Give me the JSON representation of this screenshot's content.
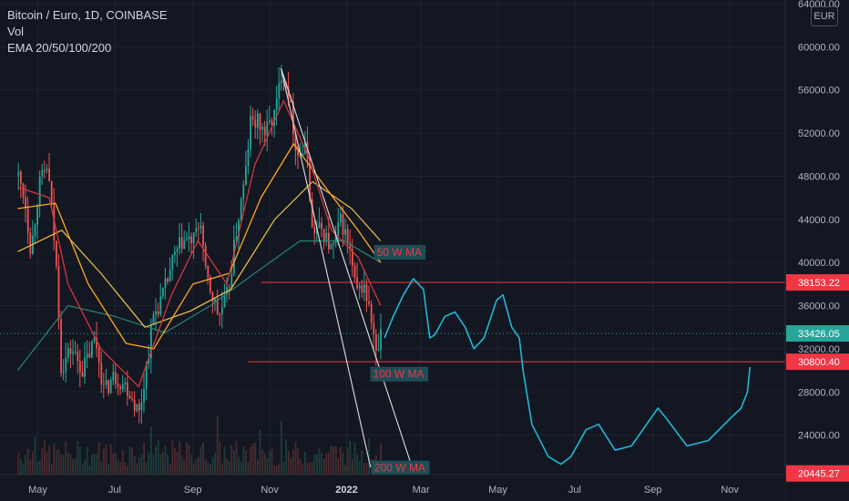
{
  "legend": {
    "title": "Bitcoin / Euro, 1D, COINBASE",
    "vol": "Vol",
    "ema": "EMA 20/50/100/200"
  },
  "currency": "EUR",
  "colors": {
    "background": "#131722",
    "grid": "#1e222d",
    "axis_text": "#b2b5be",
    "up": "#26a69a",
    "down": "#ef5350",
    "ema20": "#d3373c",
    "ema50": "#ffa726",
    "ema100": "#e6b84a",
    "ema200": "#2a7f6f",
    "projection": "#22b7d6",
    "trendline": "#e0e0e0",
    "hline": "#f23645"
  },
  "chart_data": {
    "type": "candlestick",
    "symbol": "Bitcoin / Euro",
    "interval": "1D",
    "exchange": "COINBASE",
    "currency": "EUR",
    "x_ticks": [
      "May",
      "Jul",
      "Sep",
      "Nov",
      "2022",
      "Mar",
      "May",
      "Jul",
      "Sep",
      "Nov"
    ],
    "y_ticks": [
      24000,
      28000,
      32000,
      36000,
      40000,
      44000,
      48000,
      52000,
      56000,
      60000,
      64000
    ],
    "price_range": [
      21000,
      64500
    ],
    "price_labels": [
      {
        "value": "38153.22",
        "color": "#f23645"
      },
      {
        "value": "33426.05",
        "color": "#26a69a"
      },
      {
        "value": "30800.40",
        "color": "#f23645"
      },
      {
        "value": "20445.27",
        "color": "#f23645"
      }
    ],
    "horizontal_lines": [
      38153.22,
      30800.4
    ],
    "current_price": 33426.05,
    "annotations": [
      "50 W MA",
      "100 W MA",
      "200 W MA"
    ],
    "price_path": [
      {
        "d": "2021-04-15",
        "p": 48000
      },
      {
        "d": "2021-04-20",
        "p": 46000
      },
      {
        "d": "2021-04-25",
        "p": 41000
      },
      {
        "d": "2021-05-01",
        "p": 47000
      },
      {
        "d": "2021-05-08",
        "p": 49000
      },
      {
        "d": "2021-05-12",
        "p": 44000
      },
      {
        "d": "2021-05-16",
        "p": 38000
      },
      {
        "d": "2021-05-19",
        "p": 30000
      },
      {
        "d": "2021-05-22",
        "p": 31000
      },
      {
        "d": "2021-05-27",
        "p": 32000
      },
      {
        "d": "2021-06-05",
        "p": 30000
      },
      {
        "d": "2021-06-15",
        "p": 33000
      },
      {
        "d": "2021-06-22",
        "p": 28000
      },
      {
        "d": "2021-06-30",
        "p": 29500
      },
      {
        "d": "2021-07-10",
        "p": 28500
      },
      {
        "d": "2021-07-20",
        "p": 26000
      },
      {
        "d": "2021-07-25",
        "p": 30000
      },
      {
        "d": "2021-07-31",
        "p": 35000
      },
      {
        "d": "2021-08-08",
        "p": 37000
      },
      {
        "d": "2021-08-15",
        "p": 40000
      },
      {
        "d": "2021-08-23",
        "p": 42000
      },
      {
        "d": "2021-09-01",
        "p": 42000
      },
      {
        "d": "2021-09-07",
        "p": 44000
      },
      {
        "d": "2021-09-10",
        "p": 39000
      },
      {
        "d": "2021-09-21",
        "p": 35000
      },
      {
        "d": "2021-09-28",
        "p": 37000
      },
      {
        "d": "2021-10-05",
        "p": 43000
      },
      {
        "d": "2021-10-12",
        "p": 48000
      },
      {
        "d": "2021-10-16",
        "p": 53000
      },
      {
        "d": "2021-10-22",
        "p": 53000
      },
      {
        "d": "2021-10-28",
        "p": 52000
      },
      {
        "d": "2021-11-05",
        "p": 54000
      },
      {
        "d": "2021-11-10",
        "p": 58000
      },
      {
        "d": "2021-11-15",
        "p": 56000
      },
      {
        "d": "2021-11-22",
        "p": 50000
      },
      {
        "d": "2021-11-30",
        "p": 50500
      },
      {
        "d": "2021-12-04",
        "p": 43000
      },
      {
        "d": "2021-12-12",
        "p": 43000
      },
      {
        "d": "2021-12-20",
        "p": 41000
      },
      {
        "d": "2021-12-27",
        "p": 44000
      },
      {
        "d": "2022-01-03",
        "p": 41000
      },
      {
        "d": "2022-01-08",
        "p": 37000
      },
      {
        "d": "2022-01-14",
        "p": 38000
      },
      {
        "d": "2022-01-21",
        "p": 34000
      },
      {
        "d": "2022-01-24",
        "p": 31000
      },
      {
        "d": "2022-01-28",
        "p": 33426
      }
    ],
    "ema20": [
      {
        "d": "2021-04-15",
        "p": 47000
      },
      {
        "d": "2021-05-10",
        "p": 46000
      },
      {
        "d": "2021-05-25",
        "p": 38000
      },
      {
        "d": "2021-06-20",
        "p": 32000
      },
      {
        "d": "2021-07-20",
        "p": 28500
      },
      {
        "d": "2021-08-15",
        "p": 37000
      },
      {
        "d": "2021-09-05",
        "p": 42000
      },
      {
        "d": "2021-09-28",
        "p": 38000
      },
      {
        "d": "2021-10-20",
        "p": 49000
      },
      {
        "d": "2021-11-12",
        "p": 55000
      },
      {
        "d": "2021-12-01",
        "p": 50000
      },
      {
        "d": "2021-12-20",
        "p": 43000
      },
      {
        "d": "2022-01-10",
        "p": 40500
      },
      {
        "d": "2022-01-28",
        "p": 36000
      }
    ],
    "ema50": [
      {
        "d": "2021-04-15",
        "p": 45000
      },
      {
        "d": "2021-05-15",
        "p": 45500
      },
      {
        "d": "2021-06-10",
        "p": 38000
      },
      {
        "d": "2021-07-10",
        "p": 32500
      },
      {
        "d": "2021-08-01",
        "p": 32000
      },
      {
        "d": "2021-09-01",
        "p": 38000
      },
      {
        "d": "2021-09-30",
        "p": 39000
      },
      {
        "d": "2021-10-25",
        "p": 46000
      },
      {
        "d": "2021-11-20",
        "p": 51000
      },
      {
        "d": "2021-12-15",
        "p": 47000
      },
      {
        "d": "2022-01-10",
        "p": 43000
      },
      {
        "d": "2022-01-28",
        "p": 40000
      }
    ],
    "ema100": [
      {
        "d": "2021-04-15",
        "p": 41000
      },
      {
        "d": "2021-05-20",
        "p": 43000
      },
      {
        "d": "2021-06-20",
        "p": 39000
      },
      {
        "d": "2021-07-25",
        "p": 34000
      },
      {
        "d": "2021-08-30",
        "p": 35500
      },
      {
        "d": "2021-10-01",
        "p": 37500
      },
      {
        "d": "2021-11-05",
        "p": 44000
      },
      {
        "d": "2021-12-05",
        "p": 47500
      },
      {
        "d": "2022-01-05",
        "p": 45000
      },
      {
        "d": "2022-01-28",
        "p": 42000
      }
    ],
    "ema200": [
      {
        "d": "2021-04-15",
        "p": 30000
      },
      {
        "d": "2021-05-25",
        "p": 36000
      },
      {
        "d": "2021-07-01",
        "p": 35000
      },
      {
        "d": "2021-08-10",
        "p": 33500
      },
      {
        "d": "2021-09-15",
        "p": 36000
      },
      {
        "d": "2021-10-20",
        "p": 39000
      },
      {
        "d": "2021-11-25",
        "p": 42000
      },
      {
        "d": "2021-12-30",
        "p": 42000
      },
      {
        "d": "2022-01-28",
        "p": 40000
      }
    ],
    "projection": [
      {
        "d": "2022-01-31",
        "p": 33000
      },
      {
        "d": "2022-02-07",
        "p": 35000
      },
      {
        "d": "2022-02-15",
        "p": 37000
      },
      {
        "d": "2022-02-23",
        "p": 38500
      },
      {
        "d": "2022-03-03",
        "p": 37500
      },
      {
        "d": "2022-03-08",
        "p": 33000
      },
      {
        "d": "2022-03-12",
        "p": 33300
      },
      {
        "d": "2022-03-20",
        "p": 35000
      },
      {
        "d": "2022-03-28",
        "p": 35400
      },
      {
        "d": "2022-04-05",
        "p": 34000
      },
      {
        "d": "2022-04-12",
        "p": 32000
      },
      {
        "d": "2022-04-20",
        "p": 33000
      },
      {
        "d": "2022-04-30",
        "p": 36500
      },
      {
        "d": "2022-05-05",
        "p": 37000
      },
      {
        "d": "2022-05-12",
        "p": 34000
      },
      {
        "d": "2022-05-18",
        "p": 33000
      },
      {
        "d": "2022-05-21",
        "p": 30000
      },
      {
        "d": "2022-05-28",
        "p": 25000
      },
      {
        "d": "2022-06-10",
        "p": 22000
      },
      {
        "d": "2022-06-20",
        "p": 21300
      },
      {
        "d": "2022-06-28",
        "p": 22000
      },
      {
        "d": "2022-07-10",
        "p": 24500
      },
      {
        "d": "2022-07-20",
        "p": 25000
      },
      {
        "d": "2022-08-02",
        "p": 22600
      },
      {
        "d": "2022-08-15",
        "p": 23000
      },
      {
        "d": "2022-09-05",
        "p": 26500
      },
      {
        "d": "2022-09-12",
        "p": 25500
      },
      {
        "d": "2022-09-28",
        "p": 23000
      },
      {
        "d": "2022-10-15",
        "p": 23500
      },
      {
        "d": "2022-11-01",
        "p": 25500
      },
      {
        "d": "2022-11-10",
        "p": 26500
      },
      {
        "d": "2022-11-15",
        "p": 28000
      },
      {
        "d": "2022-11-17",
        "p": 30300
      }
    ],
    "trendlines": [
      {
        "from": {
          "d": "2021-11-10",
          "p": 58000
        },
        "to": {
          "d": "2022-02-22",
          "p": 21000
        }
      },
      {
        "from": {
          "d": "2021-11-10",
          "p": 58000
        },
        "to": {
          "d": "2022-01-20",
          "p": 21000
        }
      }
    ]
  }
}
